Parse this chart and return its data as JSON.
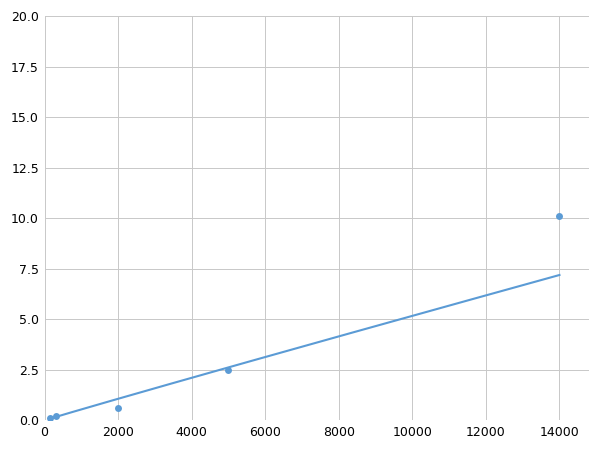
{
  "x_points": [
    156,
    312,
    2000,
    5000,
    14000
  ],
  "y_points": [
    0.1,
    0.2,
    0.6,
    2.5,
    10.1
  ],
  "line_color": "#5b9bd5",
  "marker_color": "#5b9bd5",
  "marker_size": 5,
  "xlim": [
    0,
    14800
  ],
  "ylim": [
    0,
    20
  ],
  "xticks": [
    0,
    2000,
    4000,
    6000,
    8000,
    10000,
    12000,
    14000
  ],
  "yticks": [
    0.0,
    2.5,
    5.0,
    7.5,
    10.0,
    12.5,
    15.0,
    17.5,
    20.0
  ],
  "grid_color": "#c8c8c8",
  "background_color": "#ffffff",
  "figsize": [
    6.0,
    4.5
  ],
  "dpi": 100
}
